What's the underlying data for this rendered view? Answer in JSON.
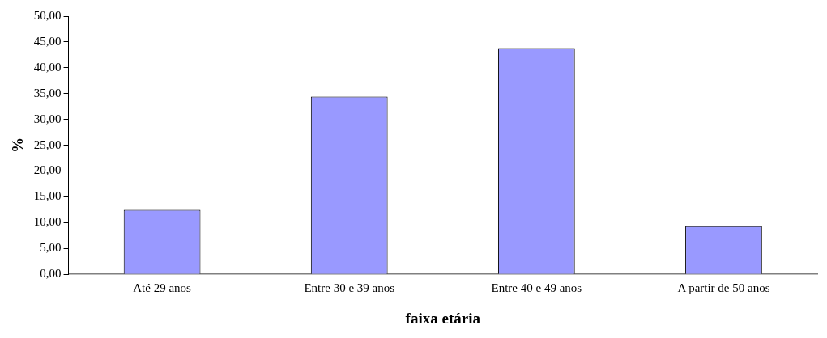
{
  "chart_data": {
    "type": "bar",
    "xlabel": "faixa etária",
    "ylabel": "%",
    "categories": [
      "Até 29 anos",
      "Entre 30 e 39 anos",
      "Entre 40 e 49 anos",
      "A partir de 50 anos"
    ],
    "values": [
      12.5,
      34.4,
      43.8,
      9.3
    ],
    "color": "#9999ff",
    "ylim": [
      0,
      50
    ],
    "yticks": [
      {
        "value": 0,
        "label": "0,00"
      },
      {
        "value": 5,
        "label": "5,00"
      },
      {
        "value": 10,
        "label": "10,00"
      },
      {
        "value": 15,
        "label": "15,00"
      },
      {
        "value": 20,
        "label": "20,00"
      },
      {
        "value": 25,
        "label": "25,00"
      },
      {
        "value": 30,
        "label": "30,00"
      },
      {
        "value": 35,
        "label": "35,00"
      },
      {
        "value": 40,
        "label": "40,00"
      },
      {
        "value": 45,
        "label": "45,00"
      },
      {
        "value": 50,
        "label": "50,00"
      }
    ],
    "grid": false,
    "legend": false
  }
}
